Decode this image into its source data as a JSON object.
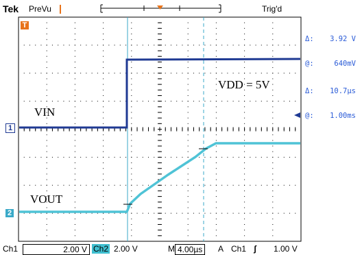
{
  "header": {
    "brand": "Tek",
    "mode": "PreVu",
    "trigger_status": "Trig'd"
  },
  "cursor_readout": {
    "rows": [
      {
        "key": "Δ:",
        "value": "3.92 V"
      },
      {
        "key": "@:",
        "value": "640mV"
      },
      {
        "key": "Δ:",
        "value": "10.7µs"
      },
      {
        "key": "@:",
        "value": "1.00ms"
      }
    ]
  },
  "waveform_labels": {
    "vin": "VIN",
    "vout": "VOUT",
    "vdd": "VDD = 5V"
  },
  "markers": {
    "trigger": "T",
    "ch1": "1",
    "ch2": "2"
  },
  "bottom_bar": {
    "ch1_label": "Ch1",
    "ch1_scale": "2.00 V",
    "ch2_label": "Ch2",
    "ch2_scale": "2.00 V",
    "timebase_label": "M",
    "timebase": "4.00µs",
    "acq_label": "A",
    "trigger_source": "Ch1",
    "trigger_slope": "ʃ",
    "trigger_level": "1.00 V"
  },
  "colors": {
    "ch1": "#1f3a93",
    "ch2": "#4fc3d6",
    "cursor": "#3aa9c8",
    "marker_orange": "#e8731a"
  }
}
